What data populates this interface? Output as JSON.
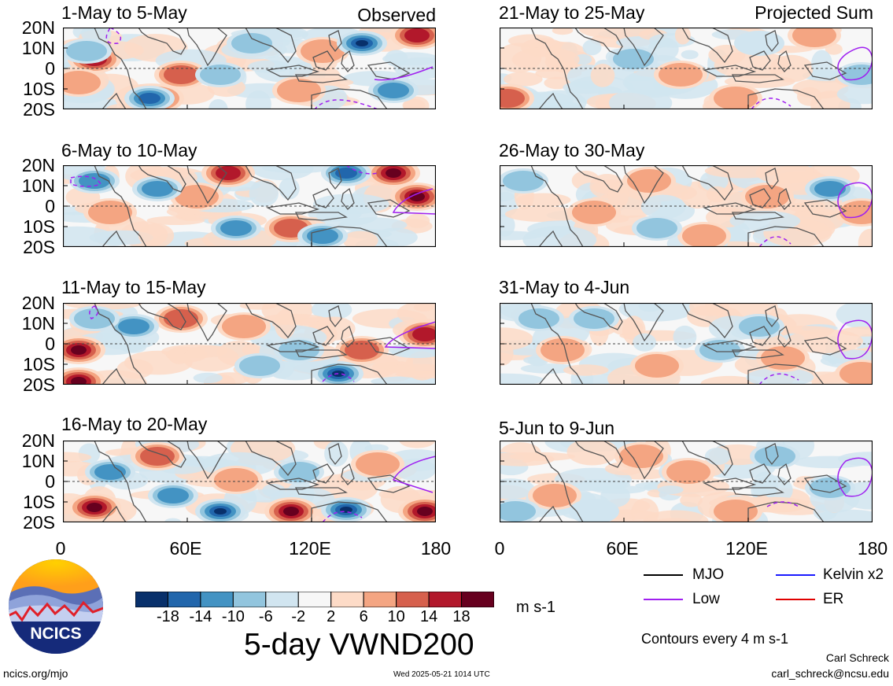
{
  "header": {
    "observed": "Observed",
    "projected": "Projected Sum"
  },
  "panels": [
    {
      "title": "1-May to 5-May"
    },
    {
      "title": "6-May to 10-May"
    },
    {
      "title": "11-May to 15-May"
    },
    {
      "title": "16-May to 20-May"
    },
    {
      "title": "21-May to 25-May"
    },
    {
      "title": "26-May to 30-May"
    },
    {
      "title": "31-May to 4-Jun"
    },
    {
      "title": "5-Jun to 9-Jun"
    }
  ],
  "chart_data": {
    "type": "heatmap",
    "title": "5-day VWND200",
    "variable": "VWND200",
    "units": "m s-1",
    "y_ticks": [
      "20N",
      "10N",
      "0",
      "10S",
      "20S"
    ],
    "x_ticks": [
      "0",
      "60E",
      "120E",
      "180"
    ],
    "xlim": [
      0,
      180
    ],
    "ylim": [
      -20,
      20
    ],
    "colorbar": {
      "labels": [
        "-18",
        "-14",
        "-10",
        "-6",
        "-2",
        "2",
        "6",
        "10",
        "14",
        "18"
      ],
      "colors": [
        "#08306b",
        "#2166ac",
        "#4393c3",
        "#92c5de",
        "#d1e5f0",
        "#f7f7f7",
        "#fddbc7",
        "#f4a582",
        "#d6604d",
        "#b2182b",
        "#67001f"
      ]
    },
    "legend": [
      {
        "label": "MJO",
        "color": "#000000"
      },
      {
        "label": "Kelvin x2",
        "color": "#1a1aff"
      },
      {
        "label": "Low",
        "color": "#a020f0"
      },
      {
        "label": "ER",
        "color": "#e00000"
      }
    ],
    "contour_note": "Contours every 4 m s-1"
  },
  "footer": {
    "logo_text": "NCICS",
    "url": "ncics.org/mjo",
    "timestamp": "Wed 2025-05-21 1014 UTC",
    "author": "Carl Schreck",
    "email": "carl_schreck@ncsu.edu"
  }
}
